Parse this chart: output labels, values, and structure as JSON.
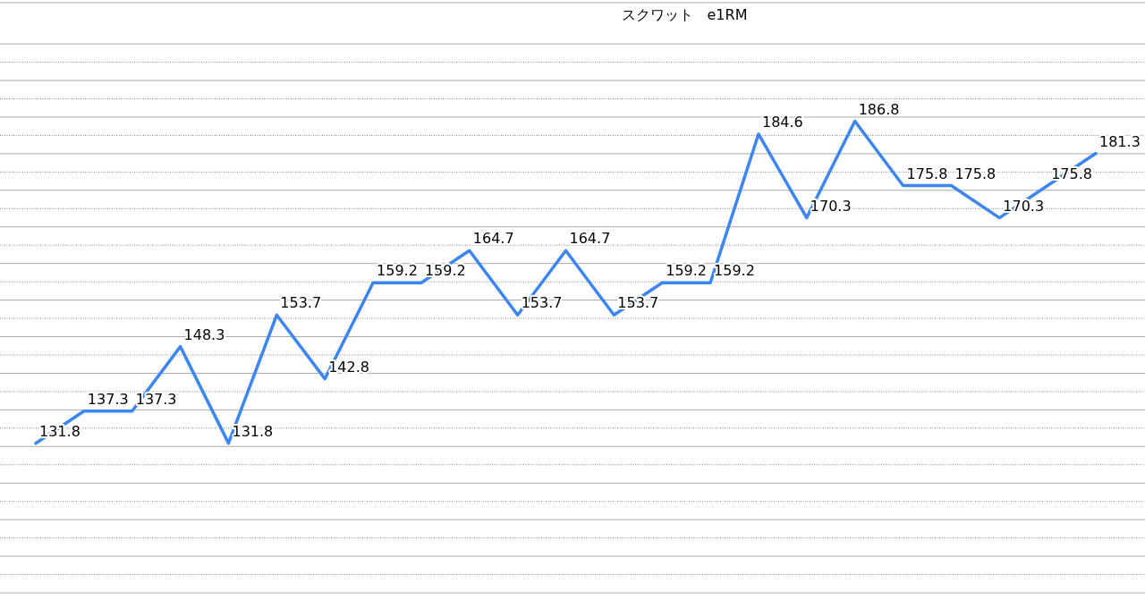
{
  "chart_data": {
    "type": "line",
    "title": "スクワット　e1RM",
    "categories": [
      null,
      null,
      null,
      null,
      null,
      null,
      null,
      null,
      null,
      null,
      null,
      null,
      null,
      null,
      null,
      null,
      null,
      null,
      null,
      null,
      null,
      null,
      null
    ],
    "series": [
      {
        "color": "#3d85f0",
        "values": [
          131.8,
          137.3,
          137.3,
          148.3,
          131.8,
          153.7,
          142.8,
          159.2,
          159.2,
          164.7,
          153.7,
          164.7,
          153.7,
          159.2,
          159.2,
          184.6,
          170.3,
          186.8,
          175.8,
          175.8,
          170.3,
          175.8,
          181.3
        ]
      }
    ],
    "ylim": [
      106.25,
      207.5
    ],
    "yticks": [
      {
        "value": 106.25,
        "label": null
      },
      {
        "value": 109.375,
        "label": null
      },
      {
        "value": 112.5,
        "label": null
      },
      {
        "value": 115.625,
        "label": null
      },
      {
        "value": 118.75,
        "label": null
      },
      {
        "value": 121.875,
        "label": null
      },
      {
        "value": 125,
        "label": null
      },
      {
        "value": 128.125,
        "label": null
      },
      {
        "value": 131.25,
        "label": null
      },
      {
        "value": 134.375,
        "label": null
      },
      {
        "value": 137.5,
        "label": null
      },
      {
        "value": 140.625,
        "label": null
      },
      {
        "value": 143.75,
        "label": null
      },
      {
        "value": 146.875,
        "label": null
      },
      {
        "value": 150,
        "label": null
      },
      {
        "value": 153.125,
        "label": null
      },
      {
        "value": 156.25,
        "label": null
      },
      {
        "value": 159.375,
        "label": null
      },
      {
        "value": 162.5,
        "label": null
      },
      {
        "value": 165.625,
        "label": null
      },
      {
        "value": 168.75,
        "label": null
      },
      {
        "value": 171.875,
        "label": null
      },
      {
        "value": 175,
        "label": null
      },
      {
        "value": 178.125,
        "label": null
      },
      {
        "value": 181.25,
        "label": null
      },
      {
        "value": 184.375,
        "label": null
      },
      {
        "value": 187.5,
        "label": null
      },
      {
        "value": 190.625,
        "label": null
      },
      {
        "value": 193.75,
        "label": null
      },
      {
        "value": 196.875,
        "label": null
      },
      {
        "value": 200,
        "label": null
      }
    ],
    "grid": "y",
    "data_labels": true,
    "marker": "none",
    "line_style": "solid"
  }
}
